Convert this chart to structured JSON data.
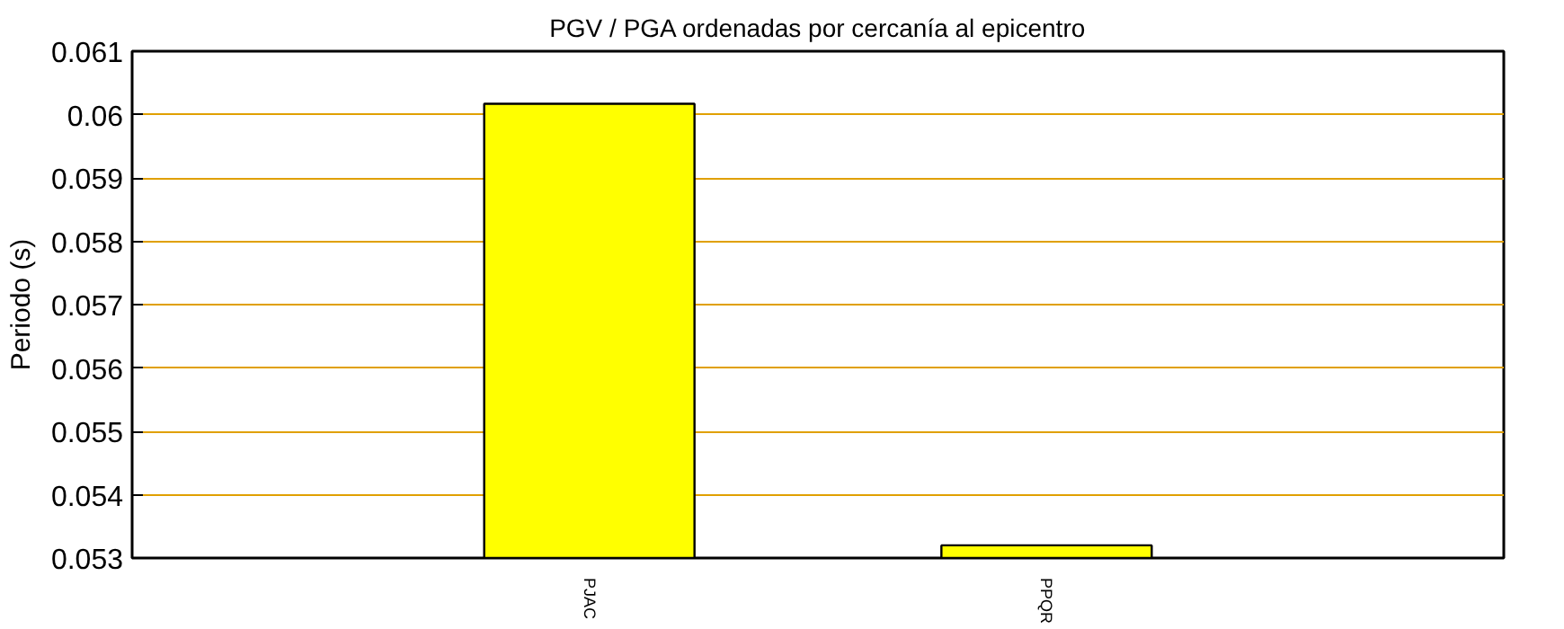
{
  "chart_data": {
    "type": "bar",
    "title": "PGV / PGA ordenadas por cercanía al epicentro",
    "ylabel": "Periodo (s)",
    "categories": [
      "PJAC",
      "PPQR"
    ],
    "values": [
      0.06017,
      0.0532
    ],
    "color": "#ffff00",
    "ylim": [
      0.053,
      0.061
    ],
    "yticks": [
      0.053,
      0.054,
      0.055,
      0.056,
      0.057,
      0.058,
      0.059,
      0.06,
      0.061
    ],
    "grid": "y"
  }
}
